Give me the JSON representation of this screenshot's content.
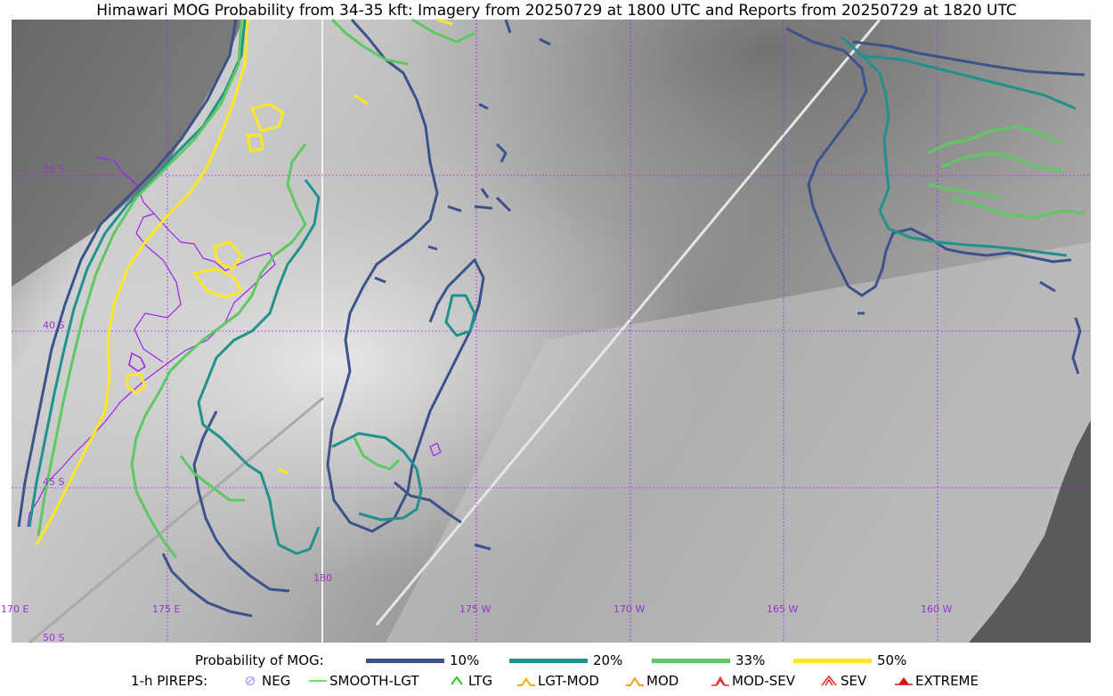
{
  "title": "Himawari MOG Probability from 34-35 kft: Imagery from 20250729 at 1800 UTC and Reports from 20250729 at 1820 UTC",
  "colors": {
    "p10": "#3b528b",
    "p20": "#21918c",
    "p33": "#5ec962",
    "p50": "#fde725",
    "coast": "#a020f0",
    "grid": "#a020f0"
  },
  "grid_labels": {
    "lat": [
      "35 S",
      "40 S",
      "45 S",
      "50 S"
    ],
    "lon": [
      "170 E",
      "175 E",
      "180",
      "175 W",
      "170 W",
      "165 W",
      "160 W"
    ]
  },
  "legend": {
    "prob_label": "Probability of MOG:",
    "prob_items": [
      {
        "label": "10%",
        "color": "#3b528b"
      },
      {
        "label": "20%",
        "color": "#21918c"
      },
      {
        "label": "33%",
        "color": "#5ec962"
      },
      {
        "label": "50%",
        "color": "#fde725"
      }
    ],
    "pirep_label": "1-h PIREPS:",
    "pirep_items": [
      {
        "label": "NEG",
        "icon": "neg-icon",
        "color": "#b0a8ff"
      },
      {
        "label": "SMOOTH-LGT",
        "icon": "smooth-lgt-icon",
        "color": "#33dd33"
      },
      {
        "label": "LTG",
        "icon": "ltg-icon",
        "color": "#22cc22"
      },
      {
        "label": "LGT-MOD",
        "icon": "lgt-mod-icon",
        "color": "#f0b000"
      },
      {
        "label": "MOD",
        "icon": "mod-icon",
        "color": "#f0a020"
      },
      {
        "label": "MOD-SEV",
        "icon": "mod-sev-icon",
        "color": "#ee3030"
      },
      {
        "label": "SEV",
        "icon": "sev-icon",
        "color": "#ee2020"
      },
      {
        "label": "EXTREME",
        "icon": "extreme-icon",
        "color": "#dd1010"
      }
    ]
  }
}
